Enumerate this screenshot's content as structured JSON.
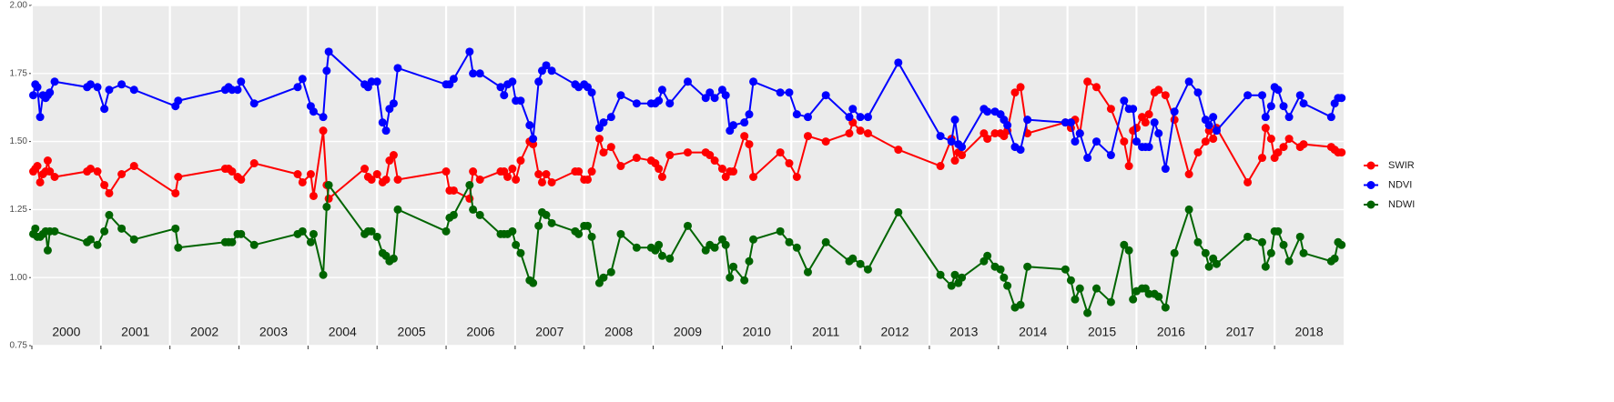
{
  "chart_data": {
    "type": "line",
    "x": [
      2000.02,
      2000.05,
      2000.08,
      2000.12,
      2000.16,
      2000.2,
      2000.23,
      2000.26,
      2000.33,
      2000.8,
      2000.85,
      2000.95,
      2001.05,
      2001.12,
      2001.3,
      2001.48,
      2002.08,
      2002.12,
      2002.8,
      2002.85,
      2002.9,
      2002.98,
      2003.03,
      2003.22,
      2003.85,
      2003.92,
      2004.04,
      2004.08,
      2004.22,
      2004.27,
      2004.3,
      2004.82,
      2004.87,
      2004.92,
      2005.0,
      2005.08,
      2005.13,
      2005.18,
      2005.24,
      2005.3,
      2006.0,
      2006.05,
      2006.11,
      2006.34,
      2006.39,
      2006.49,
      2006.79,
      2006.84,
      2006.89,
      2006.96,
      2007.01,
      2007.08,
      2007.21,
      2007.26,
      2007.34,
      2007.39,
      2007.45,
      2007.53,
      2007.87,
      2007.92,
      2008.0,
      2008.05,
      2008.11,
      2008.22,
      2008.28,
      2008.39,
      2008.53,
      2008.76,
      2008.97,
      2009.03,
      2009.08,
      2009.13,
      2009.24,
      2009.5,
      2009.76,
      2009.82,
      2009.89,
      2010.0,
      2010.05,
      2010.11,
      2010.16,
      2010.32,
      2010.39,
      2010.45,
      2010.84,
      2010.97,
      2011.08,
      2011.24,
      2011.5,
      2011.84,
      2011.89,
      2012.0,
      2012.11,
      2012.55,
      2013.16,
      2013.32,
      2013.37,
      2013.42,
      2013.47,
      2013.79,
      2013.84,
      2013.95,
      2014.03,
      2014.08,
      2014.13,
      2014.24,
      2014.32,
      2014.42,
      2014.97,
      2015.05,
      2015.11,
      2015.18,
      2015.29,
      2015.42,
      2015.63,
      2015.82,
      2015.89,
      2015.95,
      2016.0,
      2016.08,
      2016.13,
      2016.18,
      2016.26,
      2016.32,
      2016.42,
      2016.55,
      2016.76,
      2016.89,
      2017.0,
      2017.05,
      2017.11,
      2017.16,
      2017.61,
      2017.82,
      2017.87,
      2017.95,
      2018.0,
      2018.05,
      2018.13,
      2018.21,
      2018.37,
      2018.42,
      2018.82,
      2018.87,
      2018.92,
      2018.97
    ],
    "series": [
      {
        "name": "SWIR",
        "color": "#ff0000",
        "values": [
          1.39,
          1.4,
          1.41,
          1.35,
          1.38,
          1.39,
          1.43,
          1.39,
          1.37,
          1.39,
          1.4,
          1.39,
          1.34,
          1.31,
          1.38,
          1.41,
          1.31,
          1.37,
          1.4,
          1.4,
          1.39,
          1.37,
          1.36,
          1.42,
          1.38,
          1.35,
          1.38,
          1.3,
          1.54,
          1.34,
          1.29,
          1.4,
          1.37,
          1.36,
          1.38,
          1.35,
          1.36,
          1.43,
          1.45,
          1.36,
          1.39,
          1.32,
          1.32,
          1.29,
          1.39,
          1.36,
          1.39,
          1.39,
          1.37,
          1.4,
          1.36,
          1.43,
          1.5,
          1.49,
          1.38,
          1.35,
          1.38,
          1.35,
          1.39,
          1.39,
          1.36,
          1.36,
          1.39,
          1.51,
          1.46,
          1.48,
          1.41,
          1.44,
          1.43,
          1.42,
          1.4,
          1.37,
          1.45,
          1.46,
          1.46,
          1.45,
          1.43,
          1.4,
          1.37,
          1.39,
          1.39,
          1.52,
          1.49,
          1.37,
          1.46,
          1.42,
          1.37,
          1.52,
          1.5,
          1.53,
          1.57,
          1.54,
          1.53,
          1.47,
          1.41,
          1.51,
          1.43,
          1.46,
          1.45,
          1.53,
          1.51,
          1.53,
          1.53,
          1.52,
          1.54,
          1.68,
          1.7,
          1.53,
          1.57,
          1.55,
          1.58,
          1.53,
          1.72,
          1.7,
          1.62,
          1.5,
          1.41,
          1.54,
          1.55,
          1.59,
          1.57,
          1.6,
          1.68,
          1.69,
          1.67,
          1.58,
          1.38,
          1.46,
          1.5,
          1.54,
          1.51,
          1.55,
          1.35,
          1.44,
          1.55,
          1.51,
          1.44,
          1.46,
          1.48,
          1.51,
          1.48,
          1.49,
          1.48,
          1.47,
          1.46,
          1.46
        ]
      },
      {
        "name": "NDVI",
        "color": "#0000ff",
        "values": [
          1.67,
          1.71,
          1.7,
          1.59,
          1.67,
          1.66,
          1.67,
          1.68,
          1.72,
          1.7,
          1.71,
          1.7,
          1.62,
          1.69,
          1.71,
          1.69,
          1.63,
          1.65,
          1.69,
          1.7,
          1.69,
          1.69,
          1.72,
          1.64,
          1.7,
          1.73,
          1.63,
          1.61,
          1.59,
          1.76,
          1.83,
          1.71,
          1.7,
          1.72,
          1.72,
          1.57,
          1.54,
          1.62,
          1.64,
          1.77,
          1.71,
          1.71,
          1.73,
          1.83,
          1.75,
          1.75,
          1.7,
          1.67,
          1.71,
          1.72,
          1.65,
          1.65,
          1.56,
          1.51,
          1.72,
          1.76,
          1.78,
          1.76,
          1.71,
          1.7,
          1.71,
          1.7,
          1.68,
          1.55,
          1.57,
          1.59,
          1.67,
          1.64,
          1.64,
          1.64,
          1.65,
          1.69,
          1.64,
          1.72,
          1.66,
          1.68,
          1.66,
          1.69,
          1.67,
          1.54,
          1.56,
          1.57,
          1.6,
          1.72,
          1.68,
          1.68,
          1.6,
          1.59,
          1.67,
          1.59,
          1.62,
          1.59,
          1.59,
          1.79,
          1.52,
          1.5,
          1.58,
          1.49,
          1.48,
          1.62,
          1.61,
          1.61,
          1.6,
          1.58,
          1.56,
          1.48,
          1.47,
          1.58,
          1.57,
          1.57,
          1.5,
          1.53,
          1.44,
          1.5,
          1.45,
          1.65,
          1.62,
          1.62,
          1.5,
          1.48,
          1.48,
          1.48,
          1.57,
          1.53,
          1.4,
          1.61,
          1.72,
          1.68,
          1.58,
          1.56,
          1.59,
          1.54,
          1.67,
          1.67,
          1.59,
          1.63,
          1.7,
          1.69,
          1.63,
          1.59,
          1.67,
          1.64,
          1.59,
          1.64,
          1.66,
          1.66
        ]
      },
      {
        "name": "NDWI",
        "color": "#006400",
        "values": [
          1.16,
          1.18,
          1.15,
          1.15,
          1.16,
          1.17,
          1.1,
          1.17,
          1.17,
          1.13,
          1.14,
          1.12,
          1.17,
          1.23,
          1.18,
          1.14,
          1.18,
          1.11,
          1.13,
          1.13,
          1.13,
          1.16,
          1.16,
          1.12,
          1.16,
          1.17,
          1.13,
          1.16,
          1.01,
          1.26,
          1.34,
          1.16,
          1.17,
          1.17,
          1.15,
          1.09,
          1.08,
          1.06,
          1.07,
          1.25,
          1.17,
          1.22,
          1.23,
          1.34,
          1.25,
          1.23,
          1.16,
          1.16,
          1.16,
          1.17,
          1.12,
          1.09,
          0.99,
          0.98,
          1.19,
          1.24,
          1.23,
          1.2,
          1.17,
          1.16,
          1.19,
          1.19,
          1.15,
          0.98,
          1.0,
          1.02,
          1.16,
          1.11,
          1.11,
          1.1,
          1.12,
          1.08,
          1.07,
          1.19,
          1.1,
          1.12,
          1.11,
          1.14,
          1.12,
          1.0,
          1.04,
          0.99,
          1.06,
          1.14,
          1.17,
          1.13,
          1.11,
          1.02,
          1.13,
          1.06,
          1.07,
          1.05,
          1.03,
          1.24,
          1.01,
          0.97,
          1.01,
          0.98,
          1.0,
          1.06,
          1.08,
          1.04,
          1.03,
          1.0,
          0.97,
          0.89,
          0.9,
          1.04,
          1.03,
          0.99,
          0.92,
          0.96,
          0.87,
          0.96,
          0.91,
          1.12,
          1.1,
          0.92,
          0.95,
          0.96,
          0.96,
          0.94,
          0.94,
          0.93,
          0.89,
          1.09,
          1.25,
          1.13,
          1.09,
          1.04,
          1.07,
          1.05,
          1.15,
          1.13,
          1.04,
          1.09,
          1.17,
          1.17,
          1.12,
          1.06,
          1.15,
          1.09,
          1.06,
          1.07,
          1.13,
          1.12
        ]
      }
    ],
    "xlim": [
      2000,
      2019
    ],
    "xticks": [
      2000,
      2001,
      2002,
      2003,
      2004,
      2005,
      2006,
      2007,
      2008,
      2009,
      2010,
      2011,
      2012,
      2013,
      2014,
      2015,
      2016,
      2017,
      2018
    ],
    "ylim": [
      0.75,
      2.0
    ],
    "yticks": [
      0.75,
      {
        "value": 1.0,
        "label": "1.00"
      },
      1.25,
      {
        "value": 1.5,
        "label": "1.50"
      },
      1.75,
      {
        "value": 2.0,
        "label": "2.00"
      }
    ],
    "grid": true,
    "legend": "right"
  }
}
